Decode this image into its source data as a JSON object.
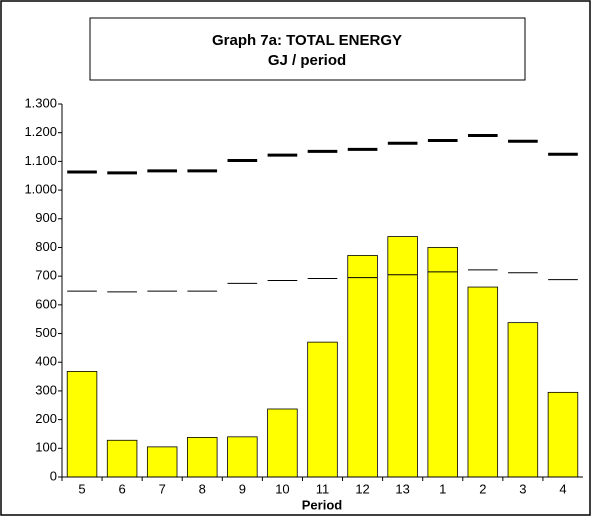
{
  "chart_data": {
    "type": "bar",
    "title": [
      "Graph 7a: TOTAL ENERGY",
      "GJ / period"
    ],
    "x_label": "Period",
    "categories": [
      "5",
      "6",
      "7",
      "8",
      "9",
      "10",
      "11",
      "12",
      "13",
      "1",
      "2",
      "3",
      "4"
    ],
    "series": [
      {
        "type": "bar",
        "color": "#ffff00",
        "values": [
          368,
          128,
          105,
          138,
          140,
          237,
          470,
          772,
          838,
          800,
          662,
          538,
          295
        ]
      },
      {
        "type": "dash",
        "color": "#000000",
        "width": 3,
        "values": [
          1063,
          1060,
          1067,
          1067,
          1103,
          1122,
          1135,
          1142,
          1163,
          1173,
          1190,
          1170,
          1125
        ]
      },
      {
        "type": "dash",
        "color": "#000000",
        "width": 1,
        "values": [
          648,
          645,
          648,
          648,
          675,
          685,
          692,
          695,
          705,
          715,
          722,
          712,
          688
        ]
      }
    ],
    "ylim": [
      0,
      1300
    ],
    "yticks": [
      0,
      100,
      200,
      300,
      400,
      500,
      600,
      700,
      800,
      900,
      {
        "value": 1000,
        "label": "1.000"
      },
      {
        "value": 1100,
        "label": "1.100"
      },
      {
        "value": 1200,
        "label": "1.200"
      },
      {
        "value": 1300,
        "label": "1.300"
      }
    ],
    "grid": false
  }
}
